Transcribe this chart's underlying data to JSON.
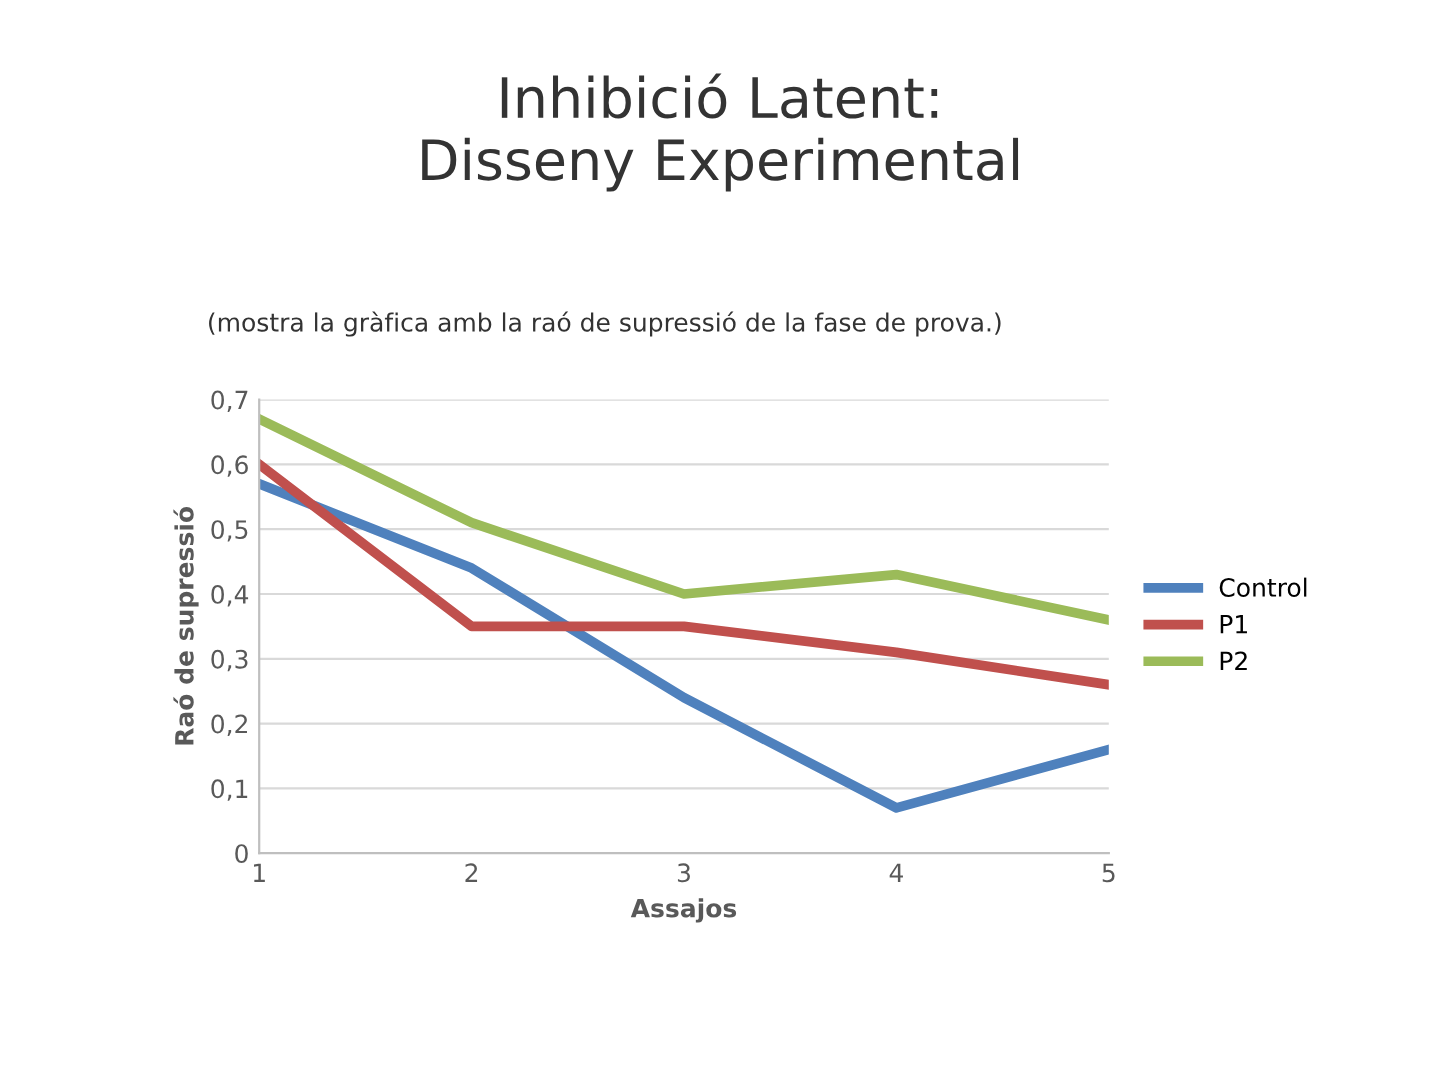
{
  "chart_data": {
    "type": "line",
    "title": "Inhibició Latent:\nDisseny Experimental",
    "subtitle": "(mostra la gràfica amb la raó de supressió de la fase de prova.)",
    "xlabel": "Assajos",
    "ylabel": "Raó de supressió",
    "x": [
      1,
      2,
      3,
      4,
      5
    ],
    "series": [
      {
        "name": "Control",
        "color": "#4f81bd",
        "values": [
          0.57,
          0.44,
          0.24,
          0.07,
          0.16
        ]
      },
      {
        "name": "P1",
        "color": "#c0504d",
        "values": [
          0.6,
          0.35,
          0.35,
          0.31,
          0.26
        ]
      },
      {
        "name": "P2",
        "color": "#9bbb59",
        "values": [
          0.67,
          0.51,
          0.4,
          0.43,
          0.36
        ]
      }
    ],
    "xlim": [
      1,
      5
    ],
    "xticks": [
      1,
      2,
      3,
      4,
      5
    ],
    "ylim": [
      0,
      0.7
    ],
    "yticks": [
      {
        "value": 0,
        "label": "0"
      },
      {
        "value": 0.1,
        "label": "0,1"
      },
      {
        "value": 0.2,
        "label": "0,2"
      },
      {
        "value": 0.3,
        "label": "0,3"
      },
      {
        "value": 0.4,
        "label": "0,4"
      },
      {
        "value": 0.5,
        "label": "0,5"
      },
      {
        "value": 0.6,
        "label": "0,6"
      },
      {
        "value": 0.7,
        "label": "0,7"
      }
    ],
    "grid": "y",
    "legend": "right",
    "marker": "none",
    "line_style": "solid"
  }
}
